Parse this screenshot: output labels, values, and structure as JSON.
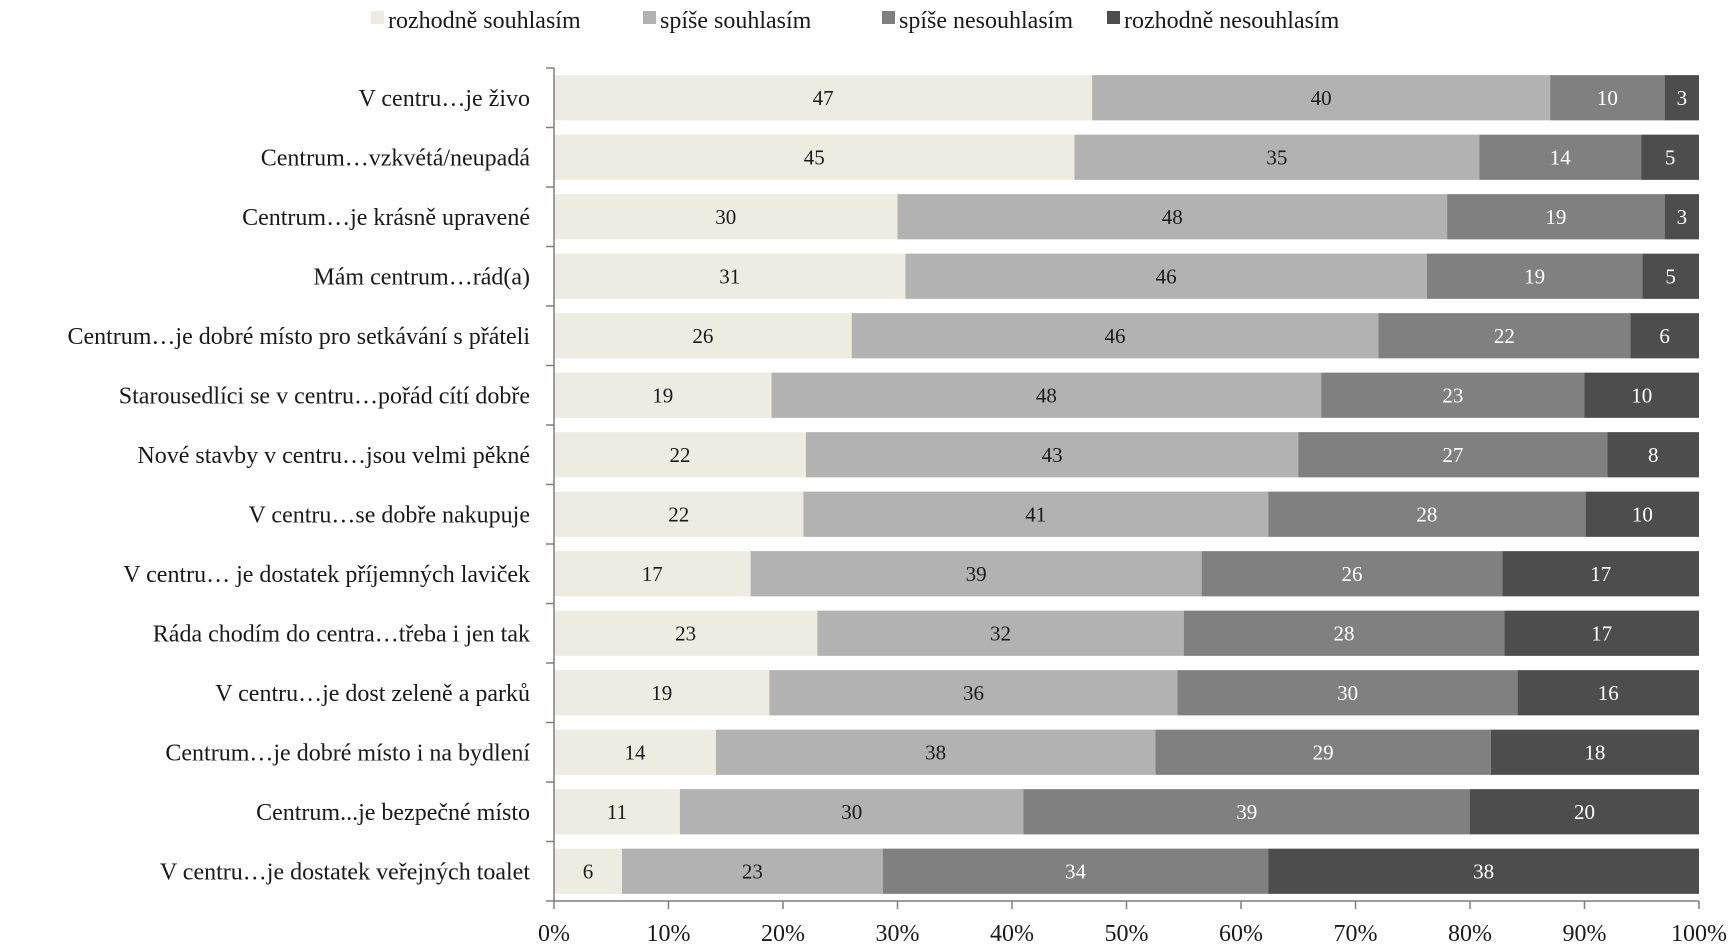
{
  "chart_data": {
    "type": "bar",
    "orientation": "horizontal",
    "stacked": "percent",
    "title": "",
    "xlabel": "",
    "ylabel": "",
    "xlim": [
      0,
      100
    ],
    "x_ticks": [
      "0%",
      "10%",
      "20%",
      "30%",
      "40%",
      "50%",
      "60%",
      "70%",
      "80%",
      "90%",
      "100%"
    ],
    "legend_position": "top",
    "grid": false,
    "categories": [
      "V centru…je živo",
      "Centrum…vzkvétá/neupadá",
      "Centrum…je krásně upravené",
      "Mám centrum…rád(a)",
      "Centrum…je dobré místo pro setkávání s přáteli",
      "Starousedlíci se v centru…pořád cítí dobře",
      "Nové stavby v centru…jsou velmi pěkné",
      "V centru…se dobře nakupuje",
      "V centru… je dostatek příjemných laviček",
      "Ráda chodím do centra…třeba i jen tak",
      "V centru…je dost zeleně a parků",
      "Centrum…je dobré místo i na bydlení",
      "Centrum...je bezpečné místo",
      "V centru…je dostatek veřejných toalet"
    ],
    "series": [
      {
        "name": "rozhodně souhlasím",
        "color": "#eeebe1",
        "label_color": "#1a1a1a",
        "values": [
          47,
          45,
          30,
          31,
          26,
          19,
          22,
          22,
          17,
          23,
          19,
          14,
          11,
          6
        ]
      },
      {
        "name": "spíše souhlasím",
        "color": "#b2b2b2",
        "label_color": "#1a1a1a",
        "values": [
          40,
          35,
          48,
          46,
          46,
          48,
          43,
          41,
          39,
          32,
          36,
          38,
          30,
          23
        ]
      },
      {
        "name": "spíše nesouhlasím",
        "color": "#808080",
        "label_color": "#ffffff",
        "values": [
          10,
          14,
          19,
          19,
          22,
          23,
          27,
          28,
          26,
          28,
          30,
          29,
          39,
          34
        ]
      },
      {
        "name": "rozhodně nesouhlasím",
        "color": "#4d4d4d",
        "label_color": "#ffffff",
        "values": [
          3,
          5,
          3,
          5,
          6,
          10,
          8,
          10,
          17,
          17,
          16,
          18,
          20,
          38
        ]
      }
    ]
  }
}
